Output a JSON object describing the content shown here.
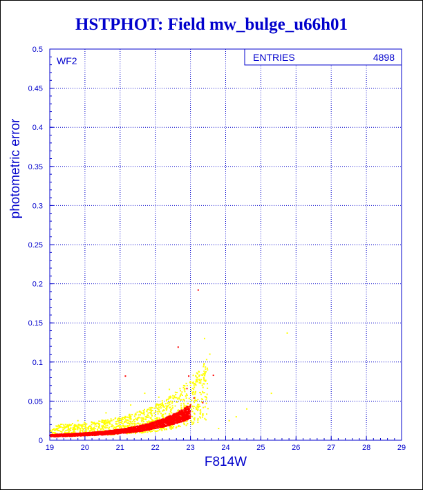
{
  "chart_data": {
    "type": "scatter",
    "title": "HSTPHOT: Field mw_bulge_u66h01",
    "xlabel": "F814W",
    "ylabel": "photometric error",
    "panel_label": "WF2",
    "stats": {
      "label": "ENTRIES",
      "value": "4898"
    },
    "xlim": [
      19,
      29
    ],
    "ylim": [
      0,
      0.5
    ],
    "xticks": [
      "19",
      "20",
      "21",
      "22",
      "23",
      "24",
      "25",
      "26",
      "27",
      "28",
      "29"
    ],
    "yticks": [
      "0",
      "0.05",
      "0.1",
      "0.15",
      "0.2",
      "0.25",
      "0.3",
      "0.35",
      "0.4",
      "0.45",
      "0.5"
    ],
    "grid": true,
    "series": [
      {
        "color": "#ff0000",
        "band": {
          "x_range": [
            19.0,
            23.0
          ],
          "y_base": 0.004,
          "y_growth": 0.0037,
          "y_scale": 0.78
        },
        "outliers": [
          [
            21.15,
            0.082
          ],
          [
            22.65,
            0.119
          ],
          [
            23.22,
            0.192
          ],
          [
            23.65,
            0.083
          ],
          [
            22.95,
            0.082
          ],
          [
            22.9,
            0.066
          ],
          [
            23.35,
            0.048
          ],
          [
            23.1,
            0.054
          ]
        ]
      },
      {
        "color": "#ffff00",
        "band": {
          "x_range": [
            19.0,
            23.5
          ],
          "y_base": 0.008,
          "y_growth": 0.0037,
          "y_scale": 0.78
        },
        "outliers": [
          [
            23.4,
            0.13
          ],
          [
            23.55,
            0.11
          ],
          [
            25.75,
            0.137
          ],
          [
            23.2,
            0.085
          ],
          [
            24.1,
            0.025
          ],
          [
            25.3,
            0.06
          ],
          [
            24.6,
            0.04
          ],
          [
            22.4,
            0.065
          ],
          [
            23.8,
            0.015
          ],
          [
            24.3,
            0.03
          ],
          [
            21.7,
            0.06
          ],
          [
            22.1,
            0.055
          ],
          [
            20.6,
            0.035
          ],
          [
            21.3,
            0.045
          ],
          [
            19.8,
            0.025
          ],
          [
            23.0,
            0.075
          ]
        ]
      }
    ]
  }
}
